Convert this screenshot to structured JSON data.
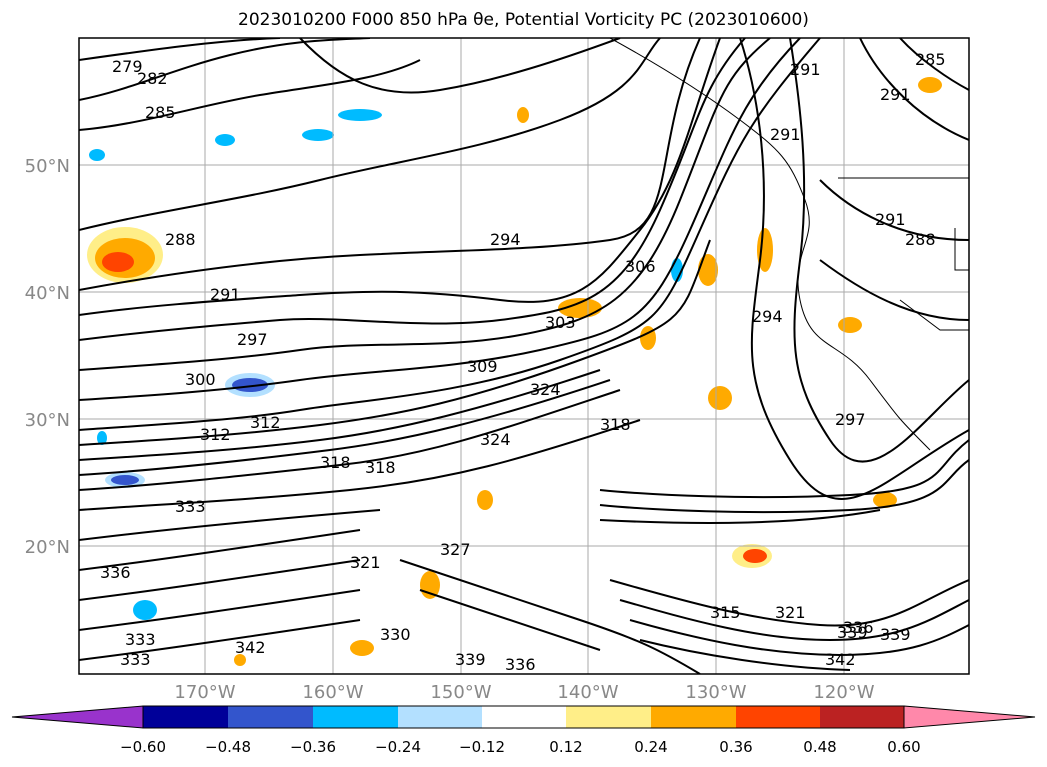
{
  "title": "2023010200 F000 850 hPa θe, Potential Vorticity PC (2023010600)",
  "map": {
    "lat_labels": [
      "50°N",
      "40°N",
      "30°N",
      "20°N"
    ],
    "lon_labels": [
      "170°W",
      "160°W",
      "150°W",
      "140°W",
      "130°W",
      "120°W"
    ],
    "label_color": "#888888",
    "grid_color": "#aaaaaa"
  },
  "contour_labels": [
    "279",
    "282",
    "285",
    "288",
    "291",
    "291",
    "294",
    "294",
    "297",
    "297",
    "300",
    "303",
    "306",
    "309",
    "312",
    "312",
    "318",
    "318",
    "321",
    "324",
    "324",
    "327",
    "330",
    "333",
    "333",
    "333",
    "336",
    "336",
    "336",
    "339",
    "339",
    "339",
    "342",
    "342",
    "291",
    "291",
    "288",
    "291",
    "285",
    "315",
    "321",
    "318"
  ],
  "colorbar": {
    "colors": [
      "#9933cc",
      "#000099",
      "#3355cc",
      "#00bbff",
      "#b3e0ff",
      "#ffffff",
      "#ffee88",
      "#ffaa00",
      "#ff4400",
      "#bb2222",
      "#ff88aa"
    ],
    "tick_labels": [
      "−0.60",
      "−0.48",
      "−0.36",
      "−0.24",
      "−0.12",
      "0.12",
      "0.24",
      "0.36",
      "0.48",
      "0.60"
    ]
  }
}
